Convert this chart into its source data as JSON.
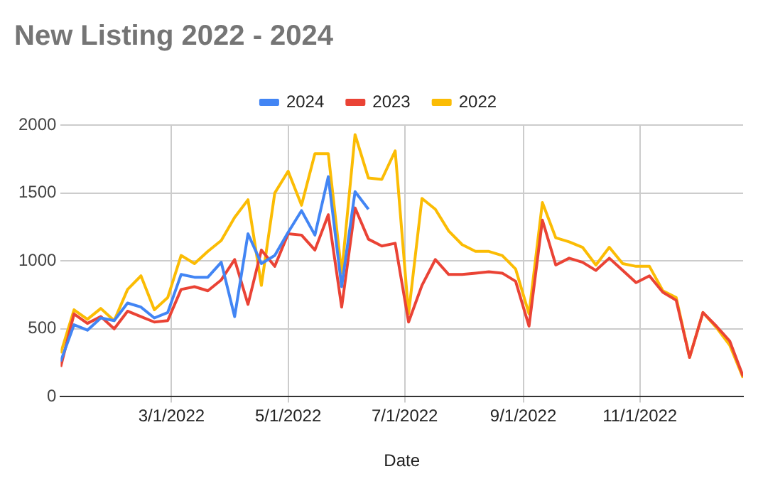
{
  "chart_data": {
    "type": "line",
    "title": "New Listing 2022 - 2024",
    "xlabel": "Date",
    "x": [
      "2022-01-02",
      "2022-01-09",
      "2022-01-16",
      "2022-01-23",
      "2022-01-30",
      "2022-02-06",
      "2022-02-13",
      "2022-02-20",
      "2022-02-27",
      "2022-03-06",
      "2022-03-13",
      "2022-03-20",
      "2022-03-27",
      "2022-04-03",
      "2022-04-10",
      "2022-04-17",
      "2022-04-24",
      "2022-05-01",
      "2022-05-08",
      "2022-05-15",
      "2022-05-22",
      "2022-05-29",
      "2022-06-05",
      "2022-06-12",
      "2022-06-19",
      "2022-06-26",
      "2022-07-03",
      "2022-07-10",
      "2022-07-17",
      "2022-07-24",
      "2022-07-31",
      "2022-08-07",
      "2022-08-14",
      "2022-08-21",
      "2022-08-28",
      "2022-09-04",
      "2022-09-11",
      "2022-09-18",
      "2022-09-25",
      "2022-10-02",
      "2022-10-09",
      "2022-10-16",
      "2022-10-23",
      "2022-10-30",
      "2022-11-06",
      "2022-11-13",
      "2022-11-20",
      "2022-11-27",
      "2022-12-04",
      "2022-12-11",
      "2022-12-18",
      "2022-12-25"
    ],
    "series": [
      {
        "name": "2024",
        "color": "#4285f4",
        "values": [
          260,
          530,
          490,
          580,
          560,
          690,
          660,
          580,
          620,
          900,
          880,
          880,
          990,
          590,
          1200,
          980,
          1040,
          1210,
          1370,
          1190,
          1620,
          810,
          1510,
          1380,
          null,
          null,
          null,
          null,
          null,
          null,
          null,
          null,
          null,
          null,
          null,
          null,
          null,
          null,
          null,
          null,
          null,
          null,
          null,
          null,
          null,
          null,
          null,
          null,
          null,
          null,
          null,
          null
        ]
      },
      {
        "name": "2023",
        "color": "#ea4335",
        "values": [
          220,
          610,
          540,
          590,
          500,
          630,
          590,
          550,
          560,
          790,
          810,
          780,
          860,
          1010,
          680,
          1080,
          960,
          1200,
          1190,
          1080,
          1340,
          660,
          1390,
          1160,
          1110,
          1130,
          550,
          820,
          1010,
          900,
          900,
          910,
          920,
          910,
          850,
          520,
          1300,
          970,
          1020,
          990,
          930,
          1020,
          930,
          840,
          890,
          770,
          710,
          290,
          620,
          520,
          410,
          150
        ]
      },
      {
        "name": "2022",
        "color": "#fbbc04",
        "values": [
          320,
          640,
          570,
          650,
          560,
          790,
          890,
          640,
          730,
          1040,
          980,
          1070,
          1150,
          1320,
          1450,
          820,
          1500,
          1660,
          1410,
          1790,
          1790,
          910,
          1930,
          1610,
          1600,
          1810,
          610,
          1460,
          1380,
          1220,
          1120,
          1070,
          1070,
          1040,
          940,
          610,
          1430,
          1170,
          1140,
          1100,
          970,
          1100,
          980,
          960,
          960,
          780,
          730,
          290,
          620,
          510,
          380,
          140
        ]
      }
    ],
    "xlim": [
      "2022-01-02",
      "2022-12-25"
    ],
    "xticks": [
      {
        "value": "2022-03-01",
        "label": "3/1/2022"
      },
      {
        "value": "2022-05-01",
        "label": "5/1/2022"
      },
      {
        "value": "2022-07-01",
        "label": "7/1/2022"
      },
      {
        "value": "2022-09-01",
        "label": "9/1/2022"
      },
      {
        "value": "2022-11-01",
        "label": "11/1/2022"
      }
    ],
    "ylim": [
      0,
      2000
    ],
    "yticks": [
      0,
      500,
      1000,
      1500,
      2000
    ],
    "grid": true,
    "legend": "top",
    "marker": "none",
    "line_style": "solid"
  }
}
